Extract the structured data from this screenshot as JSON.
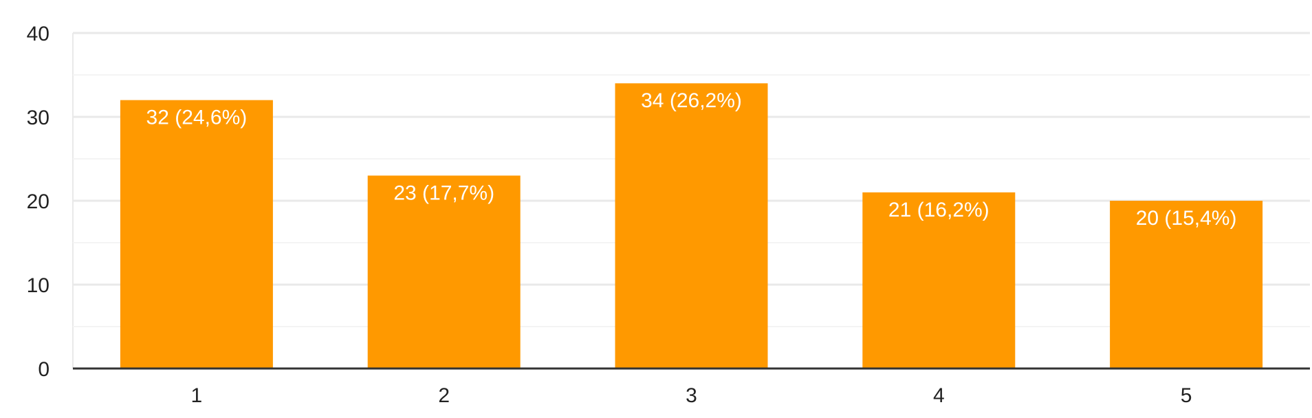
{
  "chart_data": {
    "type": "bar",
    "title": "",
    "xlabel": "",
    "ylabel": "",
    "categories": [
      "1",
      "2",
      "3",
      "4",
      "5"
    ],
    "values": [
      32,
      23,
      34,
      21,
      20
    ],
    "data_labels": [
      "32 (24,6%)",
      "23 (17,7%)",
      "34 (26,2%)",
      "21 (16,2%)",
      "20 (15,4%)"
    ],
    "ylim": [
      0,
      40
    ],
    "y_ticks": [
      0,
      10,
      20,
      30,
      40
    ],
    "y_tick_labels": [
      "0",
      "10",
      "20",
      "30",
      "40"
    ],
    "minor_gridlines": [
      5,
      15,
      25,
      35
    ],
    "grid": true,
    "legend": "none"
  },
  "colors": {
    "bar": "#ff9900",
    "gridline": "#e9e9e9",
    "minor_gridline": "#f4f4f4",
    "axis": "#333333",
    "tick_text": "#222222",
    "label_text": "#ffffff",
    "background": "#ffffff"
  }
}
